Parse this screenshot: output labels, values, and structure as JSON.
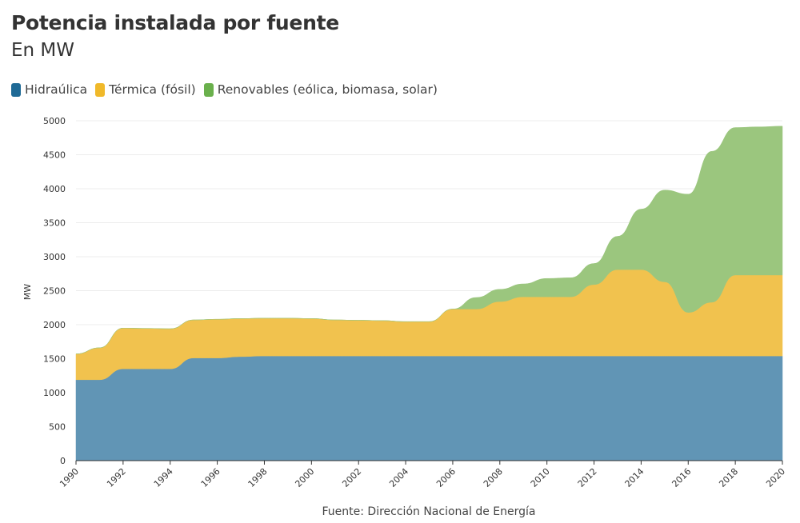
{
  "chart_data": {
    "type": "area",
    "stacked": true,
    "title": "Potencia instalada por fuente",
    "subtitle": "En MW",
    "ylabel": "MW",
    "xlabel": "",
    "source": "Fuente: Dirección Nacional de Energía",
    "ylim": [
      0,
      5000
    ],
    "yticks": [
      0,
      500,
      1000,
      1500,
      2000,
      2500,
      3000,
      3500,
      4000,
      4500,
      5000
    ],
    "xlim": [
      1990,
      2020
    ],
    "xticks": [
      "1990",
      "1992",
      "1994",
      "1996",
      "1998",
      "2000",
      "2002",
      "2004",
      "2006",
      "2008",
      "2010",
      "2012",
      "2014",
      "2016",
      "2018",
      "2020"
    ],
    "grid": true,
    "legend": "top-left",
    "x": [
      1990,
      1991,
      1992,
      1993,
      1994,
      1995,
      1996,
      1997,
      1998,
      1999,
      2000,
      2001,
      2002,
      2003,
      2004,
      2005,
      2006,
      2007,
      2008,
      2009,
      2010,
      2011,
      2012,
      2013,
      2014,
      2015,
      2016,
      2017,
      2018,
      2019,
      2020
    ],
    "series": [
      {
        "name": "Hidraúlica",
        "color": "#1f6a96",
        "fill": "#6195b5",
        "values": [
          1190,
          1190,
          1350,
          1350,
          1350,
          1510,
          1510,
          1530,
          1540,
          1540,
          1540,
          1540,
          1540,
          1540,
          1540,
          1540,
          1540,
          1540,
          1540,
          1540,
          1540,
          1540,
          1540,
          1540,
          1540,
          1540,
          1540,
          1540,
          1540,
          1540,
          1540
        ]
      },
      {
        "name": "Térmica (fósil)",
        "color": "#f0b92a",
        "fill": "#f1c24e",
        "values": [
          380,
          470,
          600,
          595,
          590,
          560,
          570,
          560,
          555,
          555,
          550,
          530,
          525,
          520,
          505,
          505,
          690,
          690,
          800,
          870,
          870,
          870,
          1050,
          1270,
          1270,
          1090,
          640,
          790,
          1190,
          1190,
          1190
        ]
      },
      {
        "name": "Renovables (eólica, biomasa, solar)",
        "color": "#6ab04c",
        "fill": "#9bc67e",
        "values": [
          0,
          0,
          0,
          0,
          0,
          0,
          0,
          0,
          0,
          0,
          0,
          0,
          0,
          0,
          0,
          0,
          0,
          170,
          180,
          190,
          270,
          280,
          310,
          490,
          890,
          1350,
          1740,
          2220,
          2170,
          2180,
          2190
        ]
      }
    ]
  }
}
